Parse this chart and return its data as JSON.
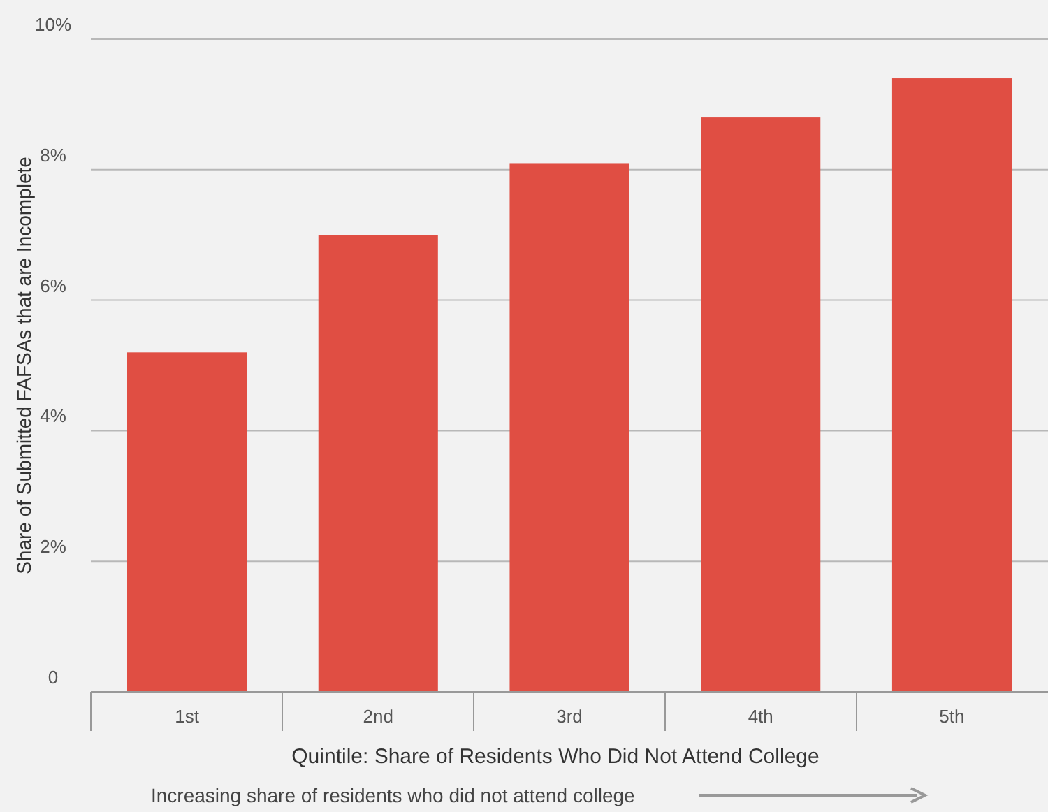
{
  "chart_data": {
    "type": "bar",
    "xlabel": "Quintile: Share of Residents Who Did Not Attend College",
    "ylabel": "Share of Submitted FAFSAs that are Incomplete",
    "categories": [
      "1st",
      "2nd",
      "3rd",
      "4th",
      "5th"
    ],
    "values": [
      5.2,
      7.0,
      8.1,
      8.8,
      9.4
    ],
    "color": "#e04e43",
    "ylim": [
      0,
      10
    ],
    "yticks": [
      0,
      {
        "value": 2,
        "label": "2%"
      },
      {
        "value": 4,
        "label": "4%"
      },
      {
        "value": 6,
        "label": "6%"
      },
      {
        "value": 8,
        "label": "8%"
      },
      {
        "value": 10,
        "label": "10%"
      }
    ],
    "grid": "y",
    "annotations": [
      "Increasing share of residents who did not attend college"
    ]
  }
}
